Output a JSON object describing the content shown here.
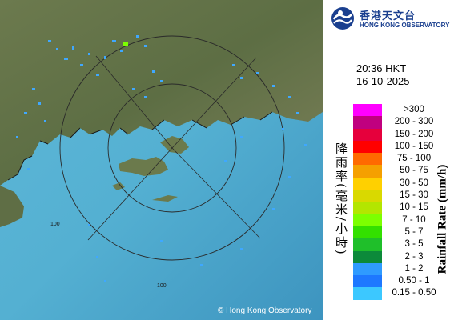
{
  "logo": {
    "chinese_name": "香港天文台",
    "english_name": "HONG KONG OBSERVATORY",
    "icon": "hko-logo-icon"
  },
  "timestamp": {
    "time": "20:36 HKT",
    "date": "16-10-2025"
  },
  "legend": {
    "title_cn": "降雨率(毫米/小時)",
    "title_en": "Rainfall Rate (mm/h)",
    "bands": [
      {
        "label": ">300",
        "color": "#ff00ff"
      },
      {
        "label": "200 - 300",
        "color": "#c0007f"
      },
      {
        "label": "150 - 200",
        "color": "#e6003c"
      },
      {
        "label": "100 - 150",
        "color": "#ff0000"
      },
      {
        "label": "75 - 100",
        "color": "#ff6a00"
      },
      {
        "label": "50 - 75",
        "color": "#f5a000"
      },
      {
        "label": "30 - 50",
        "color": "#ffd000"
      },
      {
        "label": "15 - 30",
        "color": "#d9d900"
      },
      {
        "label": "10 - 15",
        "color": "#b3e600"
      },
      {
        "label": "7 - 10",
        "color": "#7cff00"
      },
      {
        "label": "5 - 7",
        "color": "#33e000"
      },
      {
        "label": "3 - 5",
        "color": "#1fbf2a"
      },
      {
        "label": "2 - 3",
        "color": "#0c8a3a"
      },
      {
        "label": "1 - 2",
        "color": "#2f9bff"
      },
      {
        "label": "0.50 - 1",
        "color": "#1e78ff"
      },
      {
        "label": "0.15 - 0.50",
        "color": "#3cc8ff"
      }
    ]
  },
  "map": {
    "range_ring_label": "100",
    "copyright": "© Hong Kong Observatory"
  }
}
